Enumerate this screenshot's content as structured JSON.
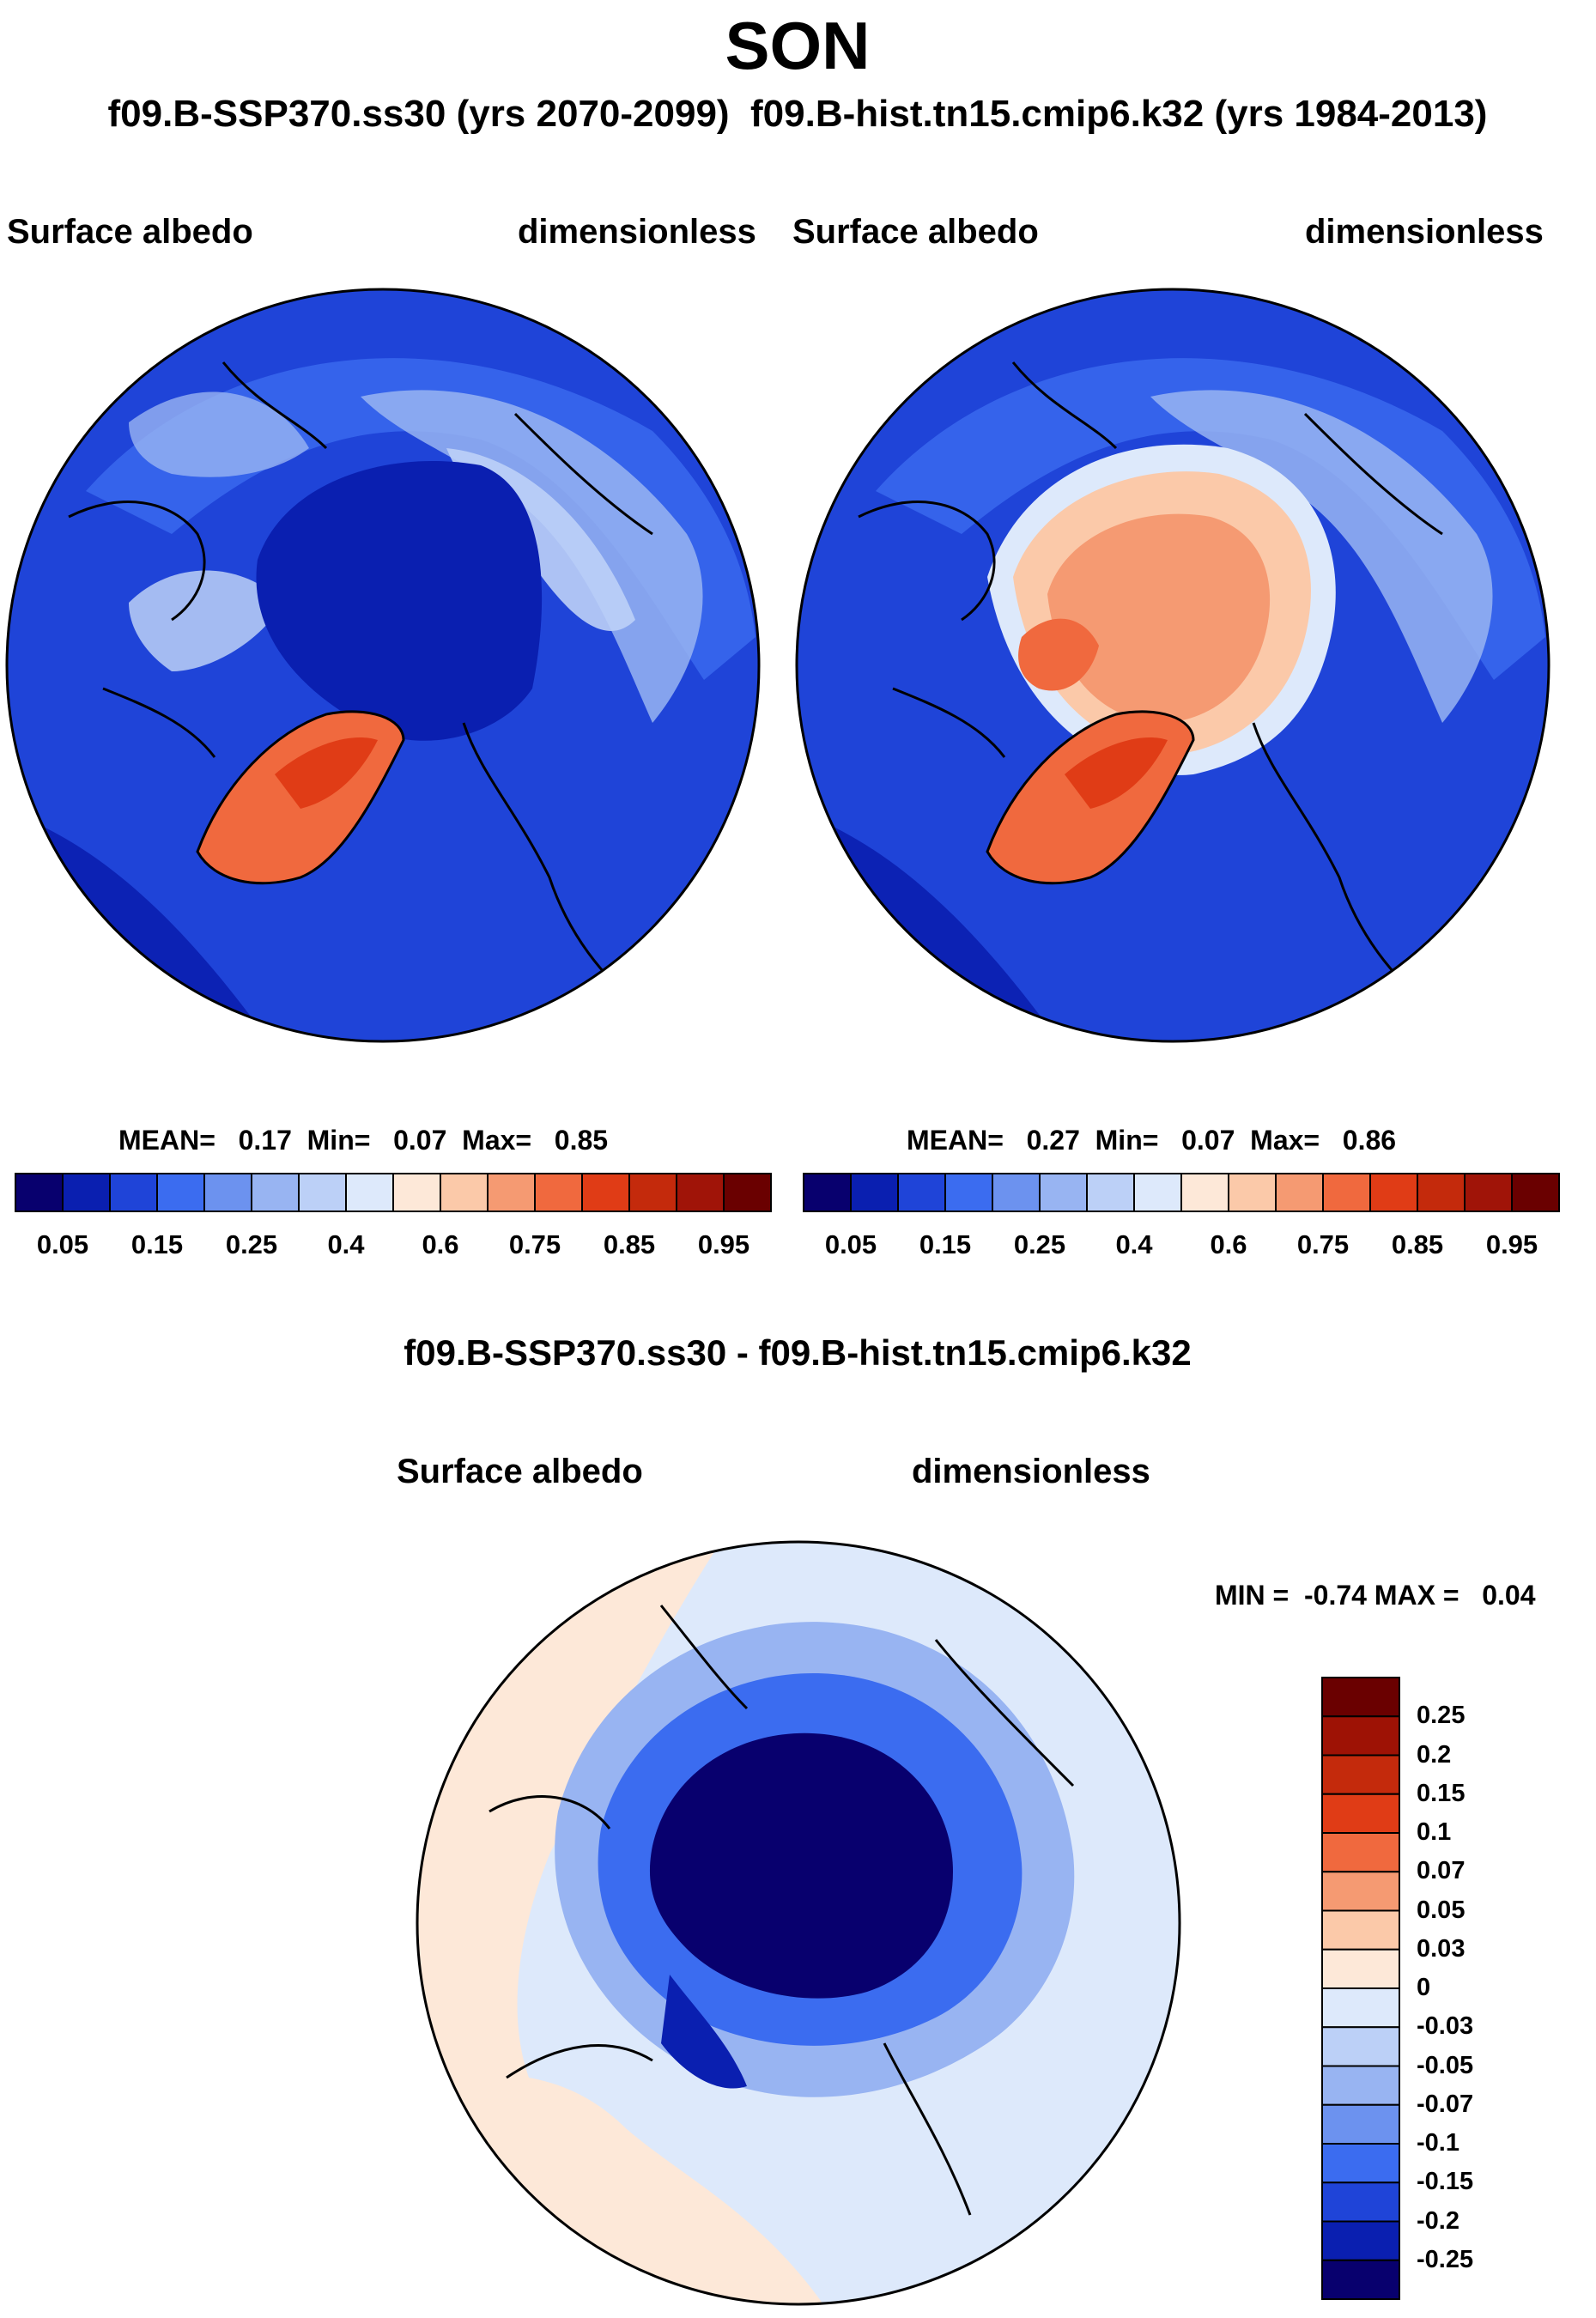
{
  "title": "SON",
  "subtitle_left": "f09.B-SSP370.ss30 (yrs 2070-2099)",
  "subtitle_right": "f09.B-hist.tn15.cmip6.k32 (yrs 1984-2013)",
  "panels": [
    {
      "variable": "Surface albedo",
      "units": "dimensionless",
      "stats": {
        "mean_label": "MEAN=",
        "mean": "0.17",
        "min_label": "Min=",
        "min": "0.07",
        "max_label": "Max=",
        "max": "0.85"
      }
    },
    {
      "variable": "Surface albedo",
      "units": "dimensionless",
      "stats": {
        "mean_label": "MEAN=",
        "mean": "0.27",
        "min_label": "Min=",
        "min": "0.07",
        "max_label": "Max=",
        "max": "0.86"
      }
    }
  ],
  "colorbar": {
    "colors": [
      "#08006e",
      "#0a1fb0",
      "#1f44d8",
      "#3b6cf0",
      "#6c92ef",
      "#98b4f2",
      "#bcd0f7",
      "#dde9fb",
      "#fde8d8",
      "#fbc9a9",
      "#f59a72",
      "#f0693e",
      "#e03c16",
      "#c42a0c",
      "#a01408",
      "#6a0000"
    ],
    "tick_labels": [
      "0.05",
      "0.15",
      "0.25",
      "0.4",
      "0.6",
      "0.75",
      "0.85",
      "0.95"
    ]
  },
  "difference": {
    "title": "f09.B-SSP370.ss30 - f09.B-hist.tn15.cmip6.k32",
    "variable": "Surface albedo",
    "units": "dimensionless",
    "minmax_label": "MIN =  -0.74 MAX =   0.04",
    "colors": [
      "#6a0000",
      "#9e1205",
      "#c42a0c",
      "#e03c16",
      "#f0693e",
      "#f59a72",
      "#fbc9a9",
      "#fde8d8",
      "#dde9fb",
      "#bcd0f7",
      "#98b4f2",
      "#6c92ef",
      "#3b6cf0",
      "#1f44d8",
      "#0a1fb0",
      "#08006e"
    ],
    "tick_labels": [
      "0.25",
      "0.2",
      "0.15",
      "0.1",
      "0.07",
      "0.05",
      "0.03",
      "0",
      "-0.03",
      "-0.05",
      "-0.07",
      "-0.1",
      "-0.15",
      "-0.2",
      "-0.25"
    ]
  }
}
